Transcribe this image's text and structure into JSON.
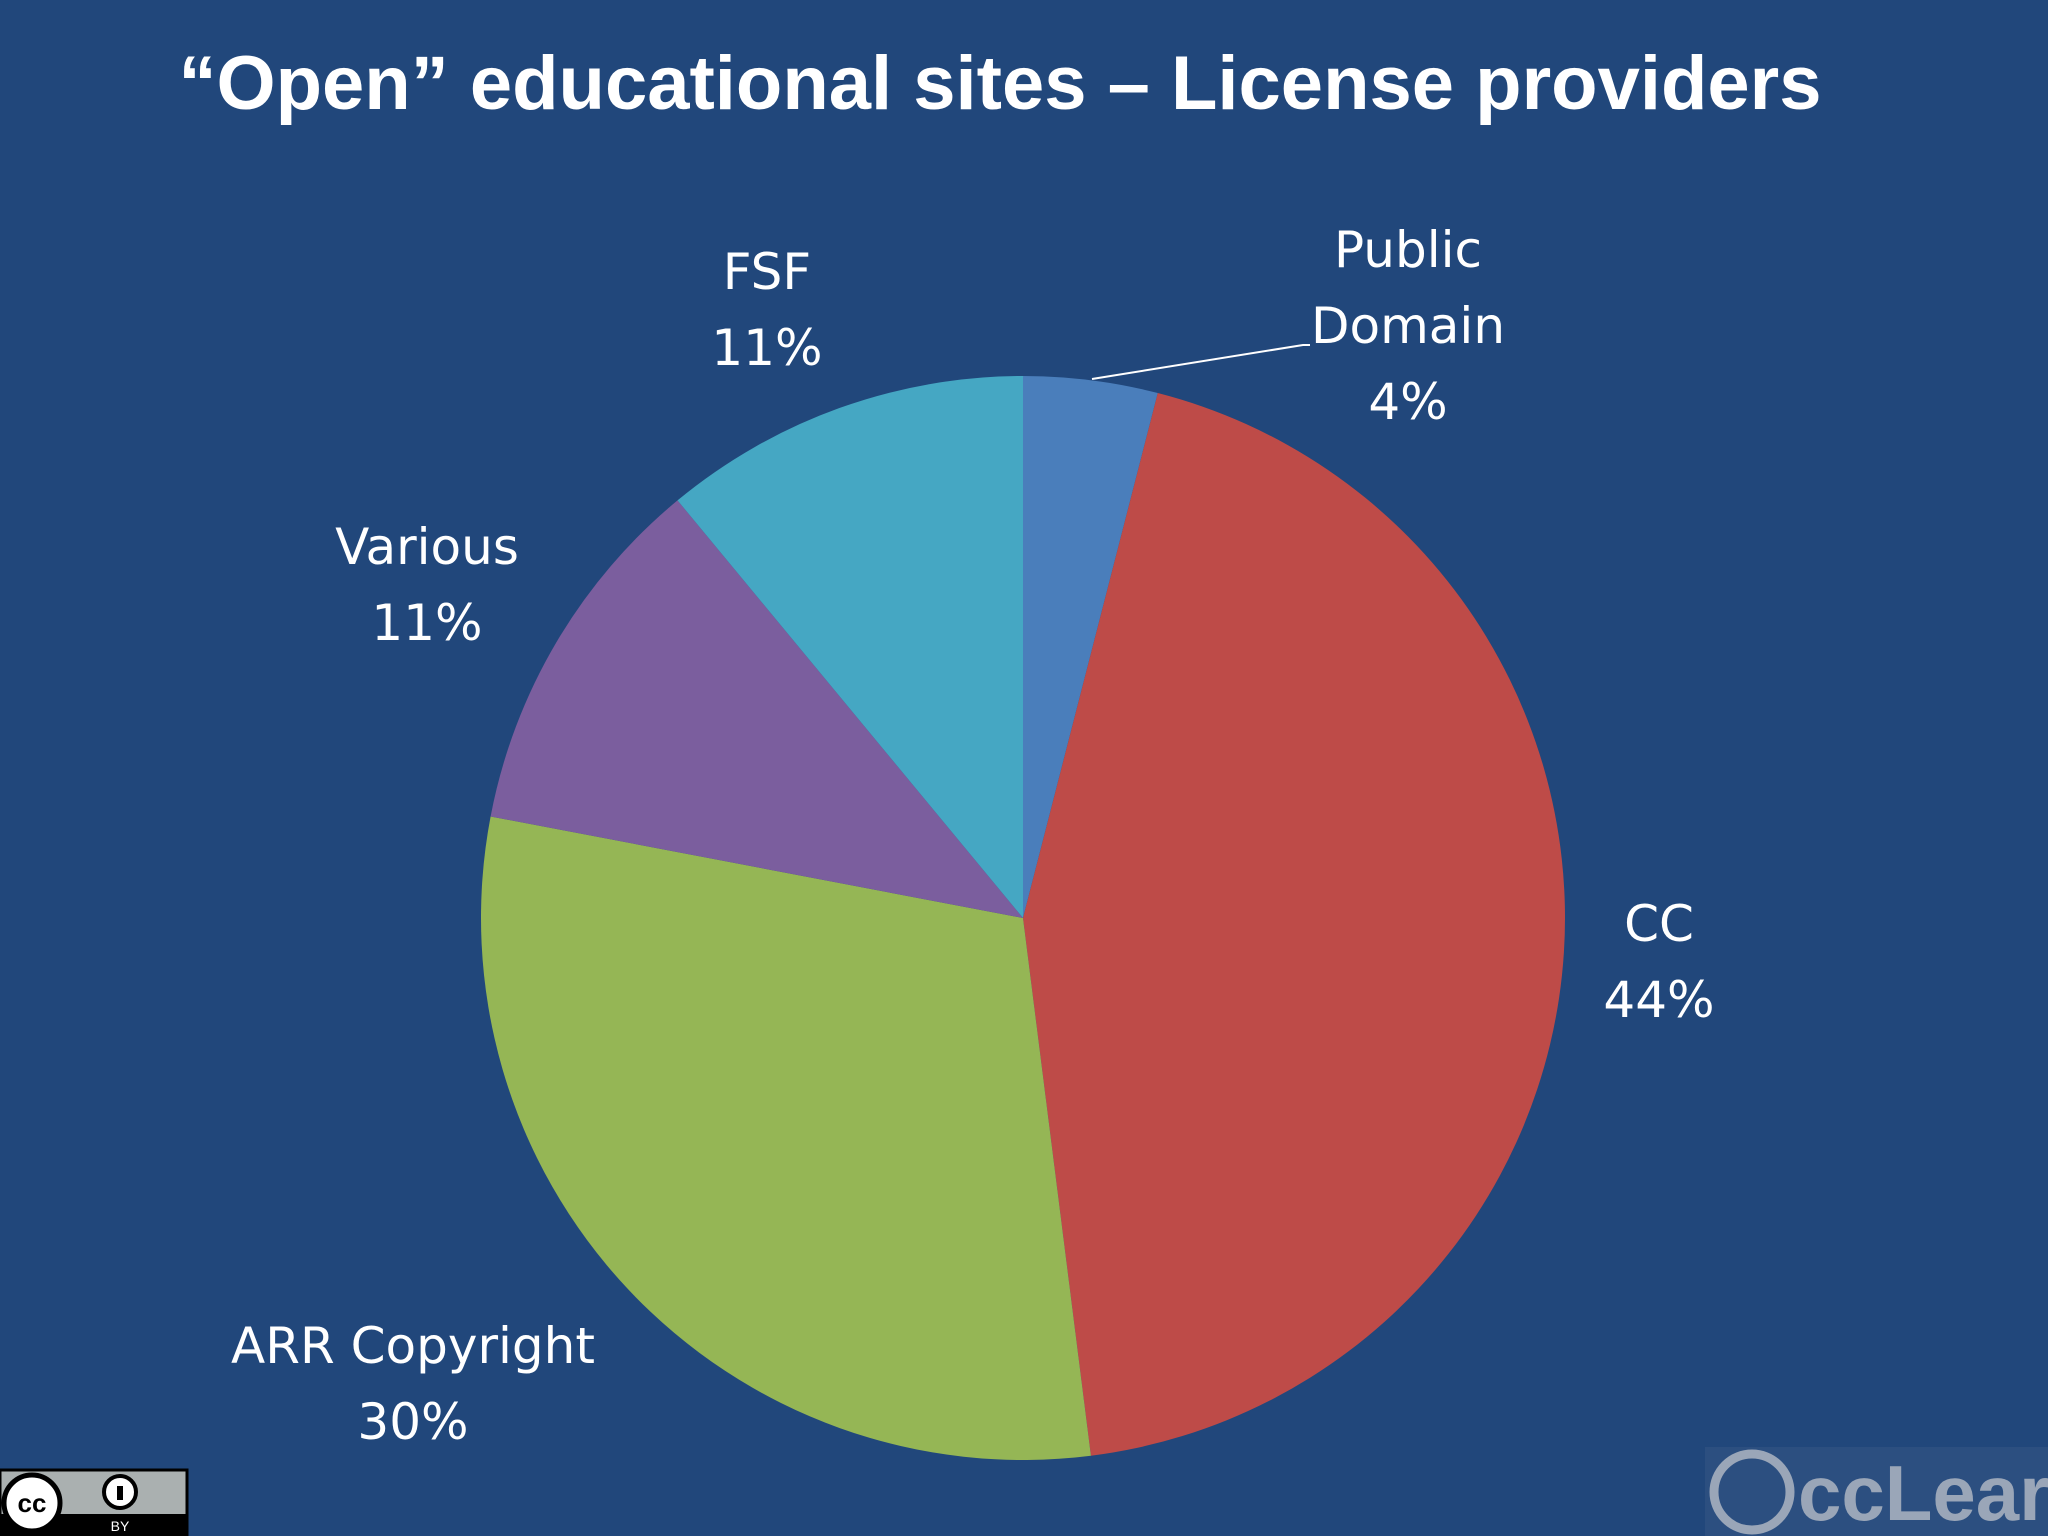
{
  "chart_data": {
    "type": "pie",
    "title": "“Open” educational sites – License providers",
    "categories": [
      "Public Domain",
      "CC",
      "ARR Copyright",
      "Various",
      "FSF"
    ],
    "values": [
      4,
      44,
      30,
      11,
      11
    ],
    "value_labels": [
      "4%",
      "44%",
      "30%",
      "11%",
      "11%"
    ],
    "colors": [
      "#4a7ebb",
      "#be4b48",
      "#95b655",
      "#7b5e9e",
      "#45a7c3"
    ]
  },
  "footer": {
    "badge": [
      "cc",
      "BY"
    ],
    "brand": "ccLearn"
  }
}
